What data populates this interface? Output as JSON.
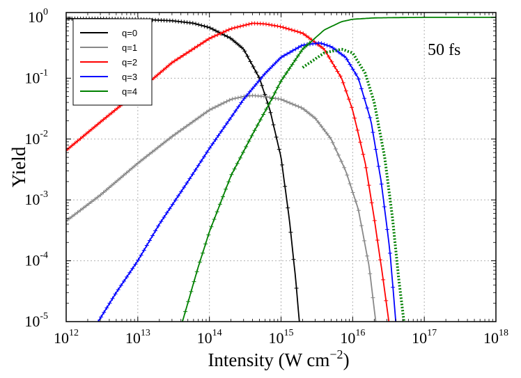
{
  "chart_data": {
    "type": "line",
    "xlabel": "Intensity (W cm",
    "xlabel_sup": "−2",
    "xlabel_suffix": ")",
    "ylabel": "Yield",
    "xscale": "log",
    "yscale": "log",
    "xlim": [
      1000000000000.0,
      1e+18
    ],
    "ylim": [
      1e-05,
      1.2
    ],
    "grid": true,
    "legend_position": "top-left",
    "annotation": "50 fs",
    "x_ticks": [
      {
        "base": "10",
        "exp": "12"
      },
      {
        "base": "10",
        "exp": "13"
      },
      {
        "base": "10",
        "exp": "14"
      },
      {
        "base": "10",
        "exp": "15"
      },
      {
        "base": "10",
        "exp": "16"
      },
      {
        "base": "10",
        "exp": "17"
      },
      {
        "base": "10",
        "exp": "18"
      }
    ],
    "y_ticks": [
      {
        "base": "10",
        "exp": "0"
      },
      {
        "base": "10",
        "exp": "-1"
      },
      {
        "base": "10",
        "exp": "-2"
      },
      {
        "base": "10",
        "exp": "-3"
      },
      {
        "base": "10",
        "exp": "-4"
      },
      {
        "base": "10",
        "exp": "-5"
      }
    ],
    "series": [
      {
        "name": "q=0",
        "color": "#000000",
        "x": [
          1000000000000.0,
          3000000000000.0,
          10000000000000.0,
          30000000000000.0,
          60000000000000.0,
          100000000000000.0,
          200000000000000.0,
          300000000000000.0,
          500000000000000.0,
          700000000000000.0,
          1000000000000000.0,
          1300000000000000.0,
          1600000000000000.0,
          1800000000000000.0
        ],
        "y": [
          0.95,
          0.95,
          0.93,
          0.88,
          0.8,
          0.68,
          0.45,
          0.3,
          0.1,
          0.03,
          0.005,
          0.0005,
          5e-05,
          1e-05
        ]
      },
      {
        "name": "q=1",
        "color": "#888888",
        "x": [
          1000000000000.0,
          3000000000000.0,
          10000000000000.0,
          30000000000000.0,
          100000000000000.0,
          200000000000000.0,
          300000000000000.0,
          400000000000000.0,
          600000000000000.0,
          1000000000000000.0,
          2000000000000000.0,
          3000000000000000.0,
          5000000000000000.0,
          8000000000000000.0,
          1.2e+16,
          1.7e+16,
          2.1e+16
        ],
        "y": [
          0.00045,
          0.0012,
          0.004,
          0.011,
          0.03,
          0.045,
          0.05,
          0.052,
          0.05,
          0.045,
          0.032,
          0.022,
          0.01,
          0.003,
          0.0007,
          8e-05,
          1e-05
        ]
      },
      {
        "name": "q=2",
        "color": "#ff0000",
        "x": [
          1000000000000.0,
          3000000000000.0,
          10000000000000.0,
          30000000000000.0,
          100000000000000.0,
          200000000000000.0,
          400000000000000.0,
          600000000000000.0,
          1000000000000000.0,
          2000000000000000.0,
          4000000000000000.0,
          7000000000000000.0,
          1e+16,
          1.5e+16,
          2e+16,
          2.6e+16,
          3.2e+16
        ],
        "y": [
          0.0065,
          0.019,
          0.06,
          0.18,
          0.45,
          0.65,
          0.8,
          0.78,
          0.7,
          0.55,
          0.3,
          0.1,
          0.03,
          0.004,
          0.0005,
          6e-05,
          1e-05
        ]
      },
      {
        "name": "q=3",
        "color": "#0000ff",
        "x": [
          2800000000000.0,
          5000000000000.0,
          10000000000000.0,
          20000000000000.0,
          50000000000000.0,
          100000000000000.0,
          300000000000000.0,
          600000000000000.0,
          1000000000000000.0,
          2000000000000000.0,
          3500000000000000.0,
          5000000000000000.0,
          8000000000000000.0,
          1.2e+16,
          1.8e+16,
          2.5e+16,
          3.3e+16,
          4e+16
        ],
        "y": [
          1e-05,
          3e-05,
          0.0001,
          0.0004,
          0.002,
          0.007,
          0.045,
          0.12,
          0.22,
          0.35,
          0.38,
          0.33,
          0.22,
          0.1,
          0.02,
          0.002,
          0.00015,
          1e-05
        ]
      },
      {
        "name": "q=4",
        "color": "#008000",
        "x": [
          42000000000000.0,
          70000000000000.0,
          100000000000000.0,
          200000000000000.0,
          400000000000000.0,
          700000000000000.0,
          1000000000000000.0,
          2000000000000000.0,
          4000000000000000.0,
          7000000000000000.0,
          1e+16,
          2e+16,
          4e+16,
          1e+17,
          1e+18
        ],
        "y": [
          1e-05,
          8e-05,
          0.0003,
          0.0025,
          0.012,
          0.04,
          0.09,
          0.3,
          0.62,
          0.85,
          0.93,
          0.98,
          0.99,
          1.0,
          1.0
        ]
      },
      {
        "color": "#008000",
        "x": [
          2000000000000000.0,
          4000000000000000.0,
          7000000000000000.0,
          1e+16,
          1.5e+16,
          2e+16,
          2.8e+16,
          3.6e+16,
          4.4e+16,
          5.2e+16
        ],
        "y": [
          0.15,
          0.26,
          0.3,
          0.26,
          0.12,
          0.04,
          0.005,
          0.0005,
          5e-05,
          1e-05
        ]
      }
    ]
  }
}
